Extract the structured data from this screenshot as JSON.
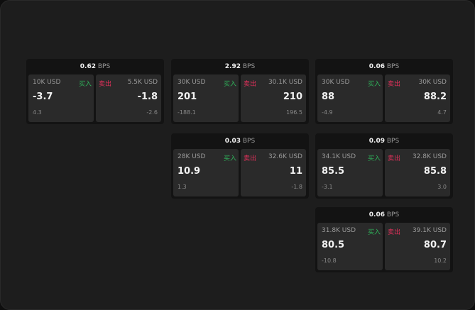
{
  "buy_label": "买入",
  "sell_label": "卖出",
  "unit": "BPS",
  "colors": {
    "buy": "#2fb35a",
    "sell": "#e0305a"
  },
  "cards": [
    {
      "spread": "0.62",
      "buy": {
        "size": "10K USD",
        "price": "-3.7",
        "change": "4.3"
      },
      "sell": {
        "size": "5.5K USD",
        "price": "-1.8",
        "change": "-2.6"
      }
    },
    {
      "spread": "2.92",
      "buy": {
        "size": "30K USD",
        "price": "201",
        "change": "-188.1"
      },
      "sell": {
        "size": "30.1K USD",
        "price": "210",
        "change": "196.5"
      }
    },
    {
      "spread": "0.06",
      "buy": {
        "size": "30K USD",
        "price": "88",
        "change": "-4.9"
      },
      "sell": {
        "size": "30K USD",
        "price": "88.2",
        "change": "4.7"
      }
    },
    {
      "spread": "0.03",
      "buy": {
        "size": "28K USD",
        "price": "10.9",
        "change": "1.3"
      },
      "sell": {
        "size": "32.6K USD",
        "price": "11",
        "change": "-1.8"
      }
    },
    {
      "spread": "0.09",
      "buy": {
        "size": "34.1K USD",
        "price": "85.5",
        "change": "-3.1"
      },
      "sell": {
        "size": "32.8K USD",
        "price": "85.8",
        "change": "3.0"
      }
    },
    {
      "spread": "0.06",
      "buy": {
        "size": "31.8K USD",
        "price": "80.5",
        "change": "-10.8"
      },
      "sell": {
        "size": "39.1K USD",
        "price": "80.7",
        "change": "10.2"
      }
    }
  ]
}
